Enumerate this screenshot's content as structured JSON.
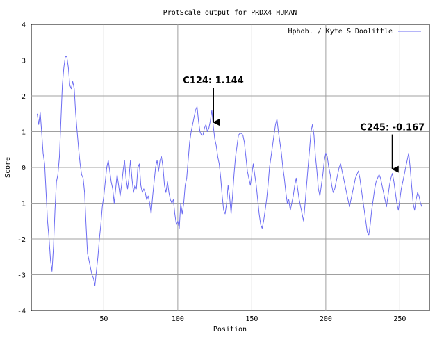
{
  "chart_data": {
    "type": "line",
    "title": "ProtScale output for PRDX4 HUMAN",
    "xlabel": "Position",
    "ylabel": "Score",
    "xlim": [
      1,
      270
    ],
    "ylim": [
      -4,
      4
    ],
    "x_ticks": [
      50,
      100,
      150,
      200,
      250
    ],
    "y_ticks": [
      -4,
      -3,
      -2,
      -1,
      0,
      1,
      2,
      3,
      4
    ],
    "grid": true,
    "legend_position": "top-right",
    "series": [
      {
        "name": "Hphob. / Kyte & Doolittle",
        "color": "#6b6bf2",
        "points": [
          [
            5,
            1.5
          ],
          [
            6,
            1.2
          ],
          [
            7,
            1.55
          ],
          [
            8,
            1.0
          ],
          [
            9,
            0.4
          ],
          [
            10,
            0.1
          ],
          [
            11,
            -0.7
          ],
          [
            12,
            -1.5
          ],
          [
            13,
            -2.0
          ],
          [
            14,
            -2.6
          ],
          [
            15,
            -2.9
          ],
          [
            16,
            -2.2
          ],
          [
            17,
            -1.2
          ],
          [
            18,
            -0.4
          ],
          [
            19,
            -0.2
          ],
          [
            20,
            0.3
          ],
          [
            21,
            1.3
          ],
          [
            22,
            2.3
          ],
          [
            23,
            2.8
          ],
          [
            24,
            3.1
          ],
          [
            25,
            3.1
          ],
          [
            26,
            2.8
          ],
          [
            27,
            2.3
          ],
          [
            28,
            2.2
          ],
          [
            29,
            2.4
          ],
          [
            30,
            2.2
          ],
          [
            31,
            1.5
          ],
          [
            32,
            1.0
          ],
          [
            33,
            0.5
          ],
          [
            34,
            0.1
          ],
          [
            35,
            -0.2
          ],
          [
            36,
            -0.3
          ],
          [
            37,
            -0.7
          ],
          [
            38,
            -1.6
          ],
          [
            39,
            -2.4
          ],
          [
            40,
            -2.6
          ],
          [
            41,
            -2.8
          ],
          [
            42,
            -3.0
          ],
          [
            43,
            -3.1
          ],
          [
            44,
            -3.3
          ],
          [
            45,
            -2.9
          ],
          [
            46,
            -2.5
          ],
          [
            47,
            -2.0
          ],
          [
            48,
            -1.6
          ],
          [
            49,
            -1.1
          ],
          [
            50,
            -0.8
          ],
          [
            51,
            -0.4
          ],
          [
            52,
            0.0
          ],
          [
            53,
            0.2
          ],
          [
            54,
            -0.1
          ],
          [
            55,
            -0.4
          ],
          [
            56,
            -0.6
          ],
          [
            57,
            -1.0
          ],
          [
            58,
            -0.6
          ],
          [
            59,
            -0.2
          ],
          [
            60,
            -0.5
          ],
          [
            61,
            -0.8
          ],
          [
            62,
            -0.5
          ],
          [
            63,
            -0.1
          ],
          [
            64,
            0.2
          ],
          [
            65,
            -0.3
          ],
          [
            66,
            -0.6
          ],
          [
            67,
            -0.3
          ],
          [
            68,
            0.2
          ],
          [
            69,
            -0.3
          ],
          [
            70,
            -0.7
          ],
          [
            71,
            -0.5
          ],
          [
            72,
            -0.6
          ],
          [
            73,
            0.0
          ],
          [
            74,
            0.1
          ],
          [
            75,
            -0.5
          ],
          [
            76,
            -0.7
          ],
          [
            77,
            -0.6
          ],
          [
            78,
            -0.7
          ],
          [
            79,
            -0.9
          ],
          [
            80,
            -0.8
          ],
          [
            81,
            -1.0
          ],
          [
            82,
            -1.3
          ],
          [
            83,
            -0.8
          ],
          [
            84,
            -0.4
          ],
          [
            85,
            0.0
          ],
          [
            86,
            0.2
          ],
          [
            87,
            -0.1
          ],
          [
            88,
            0.2
          ],
          [
            89,
            0.3
          ],
          [
            90,
            0.0
          ],
          [
            91,
            -0.5
          ],
          [
            92,
            -0.7
          ],
          [
            93,
            -0.4
          ],
          [
            94,
            -0.7
          ],
          [
            95,
            -0.9
          ],
          [
            96,
            -1.0
          ],
          [
            97,
            -0.9
          ],
          [
            98,
            -1.3
          ],
          [
            99,
            -1.6
          ],
          [
            100,
            -1.5
          ],
          [
            101,
            -1.7
          ],
          [
            102,
            -1.0
          ],
          [
            103,
            -1.3
          ],
          [
            104,
            -1.0
          ],
          [
            105,
            -0.5
          ],
          [
            106,
            -0.3
          ],
          [
            107,
            0.2
          ],
          [
            108,
            0.7
          ],
          [
            109,
            1.0
          ],
          [
            110,
            1.2
          ],
          [
            111,
            1.4
          ],
          [
            112,
            1.6
          ],
          [
            113,
            1.7
          ],
          [
            114,
            1.3
          ],
          [
            115,
            1.0
          ],
          [
            116,
            0.9
          ],
          [
            117,
            0.9
          ],
          [
            118,
            1.1
          ],
          [
            119,
            1.2
          ],
          [
            120,
            1.0
          ],
          [
            121,
            1.1
          ],
          [
            122,
            1.3
          ],
          [
            123,
            1.6
          ],
          [
            124,
            1.144
          ],
          [
            125,
            0.8
          ],
          [
            126,
            0.6
          ],
          [
            127,
            0.3
          ],
          [
            128,
            0.1
          ],
          [
            129,
            -0.3
          ],
          [
            130,
            -0.8
          ],
          [
            131,
            -1.2
          ],
          [
            132,
            -1.3
          ],
          [
            133,
            -1.0
          ],
          [
            134,
            -0.5
          ],
          [
            135,
            -0.8
          ],
          [
            136,
            -1.3
          ],
          [
            137,
            -0.8
          ],
          [
            138,
            -0.2
          ],
          [
            139,
            0.3
          ],
          [
            140,
            0.6
          ],
          [
            141,
            0.9
          ],
          [
            142,
            0.95
          ],
          [
            143,
            0.95
          ],
          [
            144,
            0.9
          ],
          [
            145,
            0.7
          ],
          [
            146,
            0.3
          ],
          [
            147,
            -0.1
          ],
          [
            148,
            -0.3
          ],
          [
            149,
            -0.5
          ],
          [
            150,
            -0.2
          ],
          [
            151,
            0.1
          ],
          [
            152,
            -0.2
          ],
          [
            153,
            -0.5
          ],
          [
            154,
            -0.9
          ],
          [
            155,
            -1.3
          ],
          [
            156,
            -1.6
          ],
          [
            157,
            -1.7
          ],
          [
            158,
            -1.5
          ],
          [
            159,
            -1.2
          ],
          [
            160,
            -0.9
          ],
          [
            161,
            -0.5
          ],
          [
            162,
            0.0
          ],
          [
            163,
            0.3
          ],
          [
            164,
            0.6
          ],
          [
            165,
            0.9
          ],
          [
            166,
            1.2
          ],
          [
            167,
            1.35
          ],
          [
            168,
            1.0
          ],
          [
            169,
            0.7
          ],
          [
            170,
            0.4
          ],
          [
            171,
            0.0
          ],
          [
            172,
            -0.3
          ],
          [
            173,
            -0.7
          ],
          [
            174,
            -1.0
          ],
          [
            175,
            -0.9
          ],
          [
            176,
            -1.2
          ],
          [
            177,
            -1.0
          ],
          [
            178,
            -0.8
          ],
          [
            179,
            -0.5
          ],
          [
            180,
            -0.3
          ],
          [
            181,
            -0.6
          ],
          [
            182,
            -0.9
          ],
          [
            183,
            -1.1
          ],
          [
            184,
            -1.3
          ],
          [
            185,
            -1.5
          ],
          [
            186,
            -1.0
          ],
          [
            187,
            -0.5
          ],
          [
            188,
            0.0
          ],
          [
            189,
            0.5
          ],
          [
            190,
            1.0
          ],
          [
            191,
            1.2
          ],
          [
            192,
            0.9
          ],
          [
            193,
            0.3
          ],
          [
            194,
            -0.1
          ],
          [
            195,
            -0.6
          ],
          [
            196,
            -0.8
          ],
          [
            197,
            -0.5
          ],
          [
            198,
            -0.2
          ],
          [
            199,
            0.2
          ],
          [
            200,
            0.4
          ],
          [
            201,
            0.3
          ],
          [
            202,
            0.0
          ],
          [
            203,
            -0.2
          ],
          [
            204,
            -0.5
          ],
          [
            205,
            -0.7
          ],
          [
            206,
            -0.6
          ],
          [
            207,
            -0.4
          ],
          [
            208,
            -0.2
          ],
          [
            209,
            0.0
          ],
          [
            210,
            0.1
          ],
          [
            211,
            -0.1
          ],
          [
            212,
            -0.3
          ],
          [
            213,
            -0.5
          ],
          [
            214,
            -0.7
          ],
          [
            215,
            -0.9
          ],
          [
            216,
            -1.1
          ],
          [
            217,
            -0.9
          ],
          [
            218,
            -0.7
          ],
          [
            219,
            -0.5
          ],
          [
            220,
            -0.3
          ],
          [
            221,
            -0.2
          ],
          [
            222,
            -0.1
          ],
          [
            223,
            -0.3
          ],
          [
            224,
            -0.6
          ],
          [
            225,
            -0.9
          ],
          [
            226,
            -1.2
          ],
          [
            227,
            -1.5
          ],
          [
            228,
            -1.8
          ],
          [
            229,
            -1.9
          ],
          [
            230,
            -1.6
          ],
          [
            231,
            -1.2
          ],
          [
            232,
            -0.9
          ],
          [
            233,
            -0.6
          ],
          [
            234,
            -0.4
          ],
          [
            235,
            -0.3
          ],
          [
            236,
            -0.2
          ],
          [
            237,
            -0.3
          ],
          [
            238,
            -0.5
          ],
          [
            239,
            -0.7
          ],
          [
            240,
            -0.9
          ],
          [
            241,
            -1.1
          ],
          [
            242,
            -0.8
          ],
          [
            243,
            -0.5
          ],
          [
            244,
            -0.3
          ],
          [
            245,
            -0.167
          ],
          [
            246,
            -0.4
          ],
          [
            247,
            -0.7
          ],
          [
            248,
            -1.0
          ],
          [
            249,
            -1.2
          ],
          [
            250,
            -0.9
          ],
          [
            251,
            -0.6
          ],
          [
            252,
            -0.4
          ],
          [
            253,
            -0.2
          ],
          [
            254,
            0.0
          ],
          [
            255,
            0.2
          ],
          [
            256,
            0.4
          ],
          [
            257,
            0.0
          ],
          [
            258,
            -0.5
          ],
          [
            259,
            -1.0
          ],
          [
            260,
            -1.2
          ],
          [
            261,
            -0.9
          ],
          [
            262,
            -0.7
          ],
          [
            263,
            -0.8
          ],
          [
            264,
            -1.0
          ],
          [
            265,
            -1.1
          ]
        ]
      }
    ],
    "annotations": [
      {
        "label": "C124: 1.144",
        "x": 124,
        "y": 1.144
      },
      {
        "label": "C245: -0.167",
        "x": 245,
        "y": -0.167
      }
    ]
  }
}
